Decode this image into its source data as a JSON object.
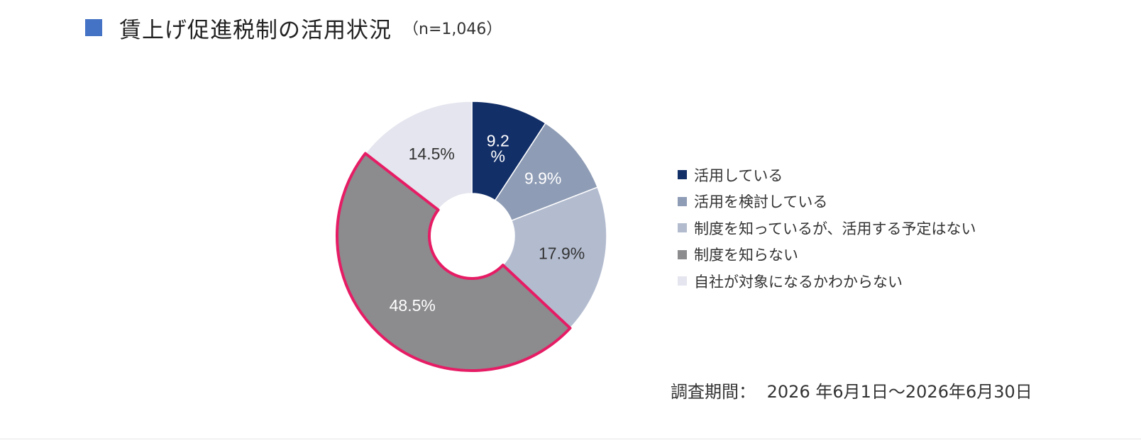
{
  "header": {
    "title": "賃上げ促進税制の活用状況",
    "sample_size": "（n=1,046）",
    "marker_color": "#4472c4"
  },
  "chart_data": {
    "type": "pie",
    "variant": "donut",
    "title": "賃上げ促進税制の活用状況",
    "unit": "%",
    "categories": [
      "活用している",
      "活用を検討している",
      "制度を知っているが、活用する予定はない",
      "制度を知らない",
      "自社が対象になるかわからない"
    ],
    "values": [
      9.2,
      9.9,
      17.9,
      48.5,
      14.5
    ],
    "labels": [
      "9.2\n%",
      "9.9%",
      "17.9%",
      "48.5%",
      "14.5%"
    ],
    "colors": [
      "#132f68",
      "#8e9cb5",
      "#b3bccf",
      "#8c8b8e",
      "#e4e5ee"
    ],
    "label_colors": [
      "#ffffff",
      "#ffffff",
      "#333333",
      "#ffffff",
      "#333333"
    ],
    "highlighted": "制度を知らない",
    "highlight_color": "#e61c64",
    "legend_position": "right"
  },
  "footer": {
    "period_label": "調査期間：",
    "period_value": "2026 年6月1日～2026年6月30日"
  }
}
